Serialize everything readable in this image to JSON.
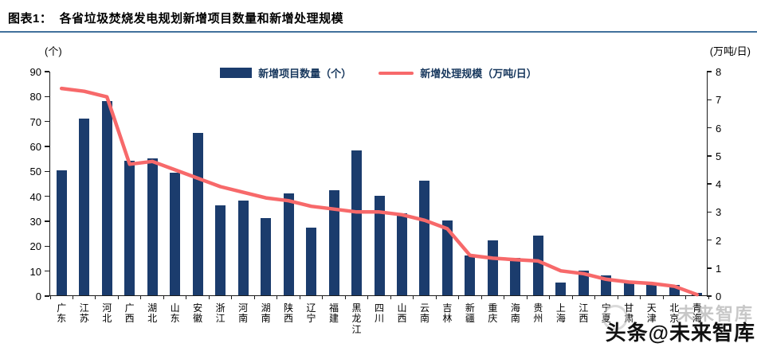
{
  "header": {
    "title": "图表1：  各省垃圾焚烧发电规划新增项目数量和新增处理规模"
  },
  "chart_data": {
    "type": "bar",
    "title": "各省垃圾焚烧发电规划新增项目数量和新增处理规模",
    "categories": [
      "广东",
      "江苏",
      "河北",
      "广西",
      "湖北",
      "山东",
      "安徽",
      "浙江",
      "河南",
      "湖南",
      "陕西",
      "辽宁",
      "福建",
      "黑龙江",
      "四川",
      "山西",
      "云南",
      "吉林",
      "新疆",
      "重庆",
      "海南",
      "贵州",
      "上海",
      "江西",
      "宁夏",
      "甘肃",
      "天津",
      "北京",
      "青海"
    ],
    "series": [
      {
        "name": "新增项目数量（个）",
        "type": "bar",
        "axis": "left",
        "color": "#1B3C6D",
        "values": [
          50,
          71,
          78,
          54,
          55,
          49,
          65,
          36,
          38,
          31,
          41,
          27,
          42,
          58,
          40,
          33,
          46,
          30,
          16,
          22,
          15,
          24,
          5,
          10,
          8,
          5,
          5,
          4,
          1
        ]
      },
      {
        "name": "新增处理规模（万吨/日）",
        "type": "line",
        "axis": "right",
        "color": "#F7696A",
        "values": [
          7.4,
          7.3,
          7.1,
          4.7,
          4.8,
          4.5,
          4.2,
          3.9,
          3.7,
          3.5,
          3.4,
          3.2,
          3.1,
          3.0,
          3.0,
          2.9,
          2.7,
          2.4,
          1.45,
          1.35,
          1.3,
          1.25,
          0.9,
          0.8,
          0.6,
          0.5,
          0.45,
          0.35,
          0.05
        ]
      }
    ],
    "left_axis": {
      "label": "(个)",
      "min": 0,
      "max": 90,
      "step": 10
    },
    "right_axis": {
      "label": "(万吨/日)",
      "min": 0,
      "max": 8,
      "step": 1
    },
    "legend_position": "top",
    "grid": false
  },
  "watermark": {
    "text": "头条@未来智库",
    "ghost_text": "未来智库"
  }
}
